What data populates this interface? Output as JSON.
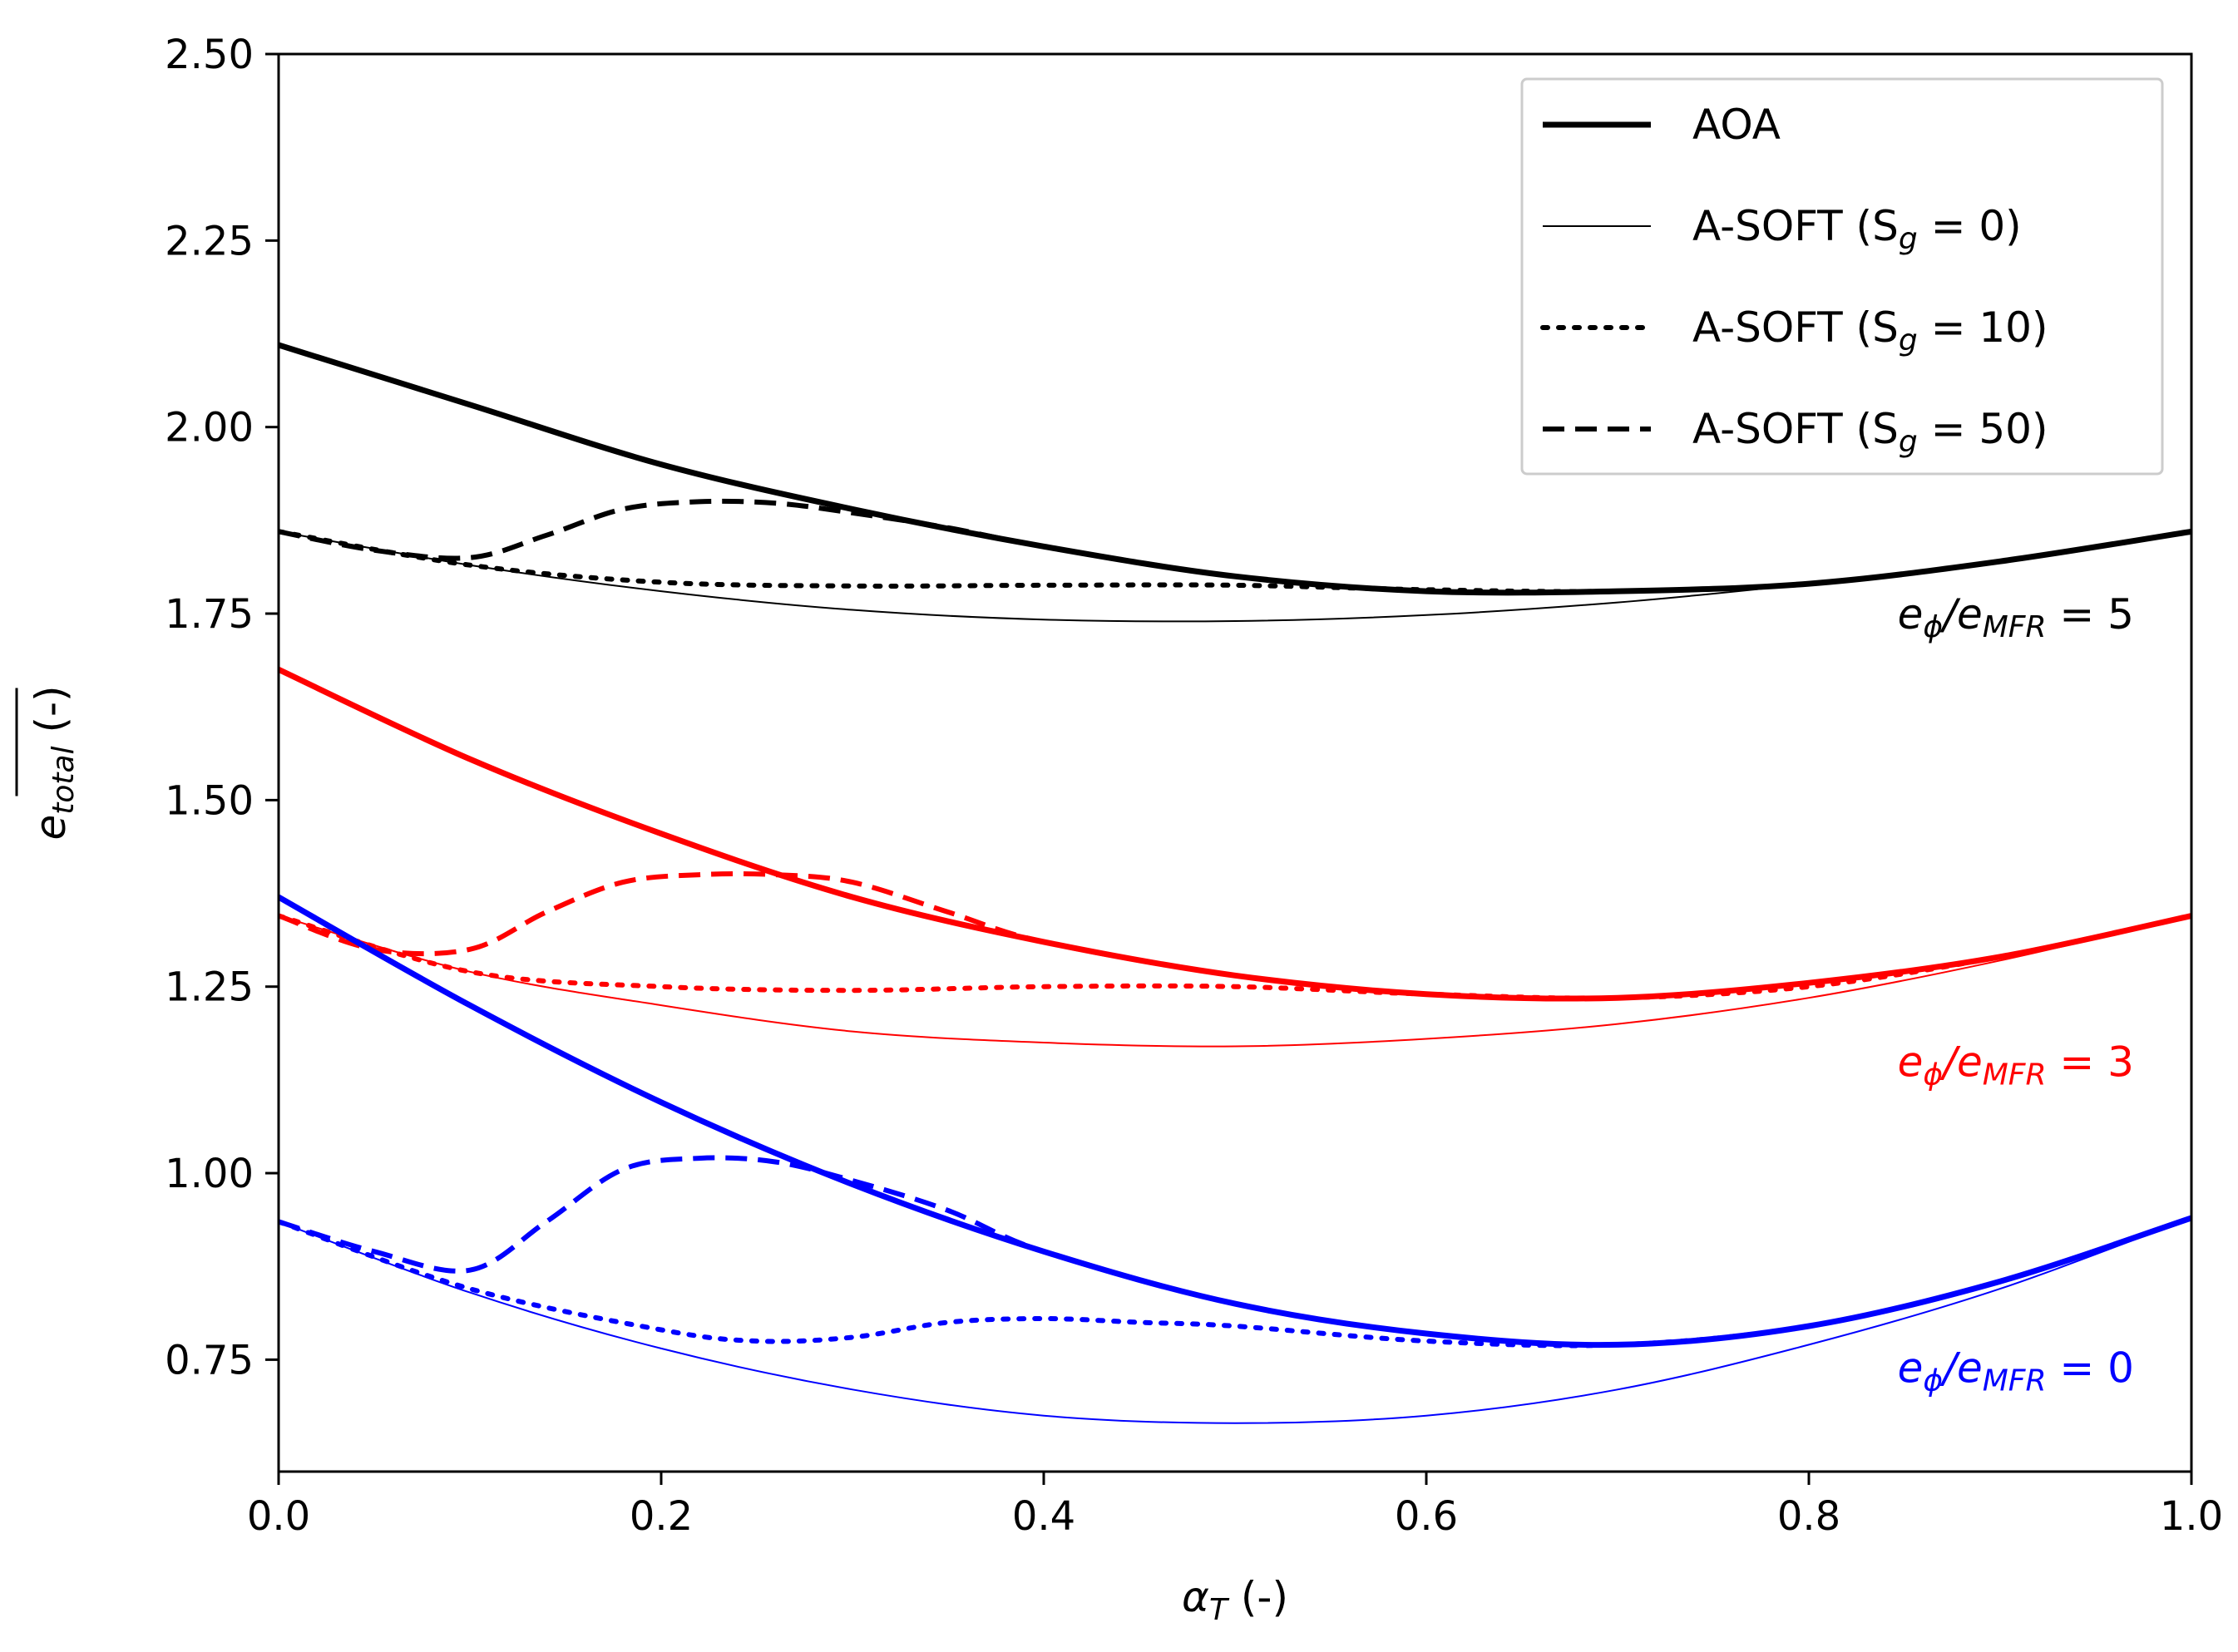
{
  "chart_data": {
    "type": "line",
    "title": "",
    "xlabel_main": "α",
    "xlabel_sub": "T",
    "xlabel_suffix": " (-)",
    "ylabel_main": "e",
    "ylabel_sub": "total",
    "ylabel_suffix": " (-)",
    "xlim": [
      0.0,
      1.0
    ],
    "ylim": [
      0.6,
      2.5
    ],
    "xticks": [
      0.0,
      0.2,
      0.4,
      0.6,
      0.8,
      1.0
    ],
    "xtick_labels": [
      "0.0",
      "0.2",
      "0.4",
      "0.6",
      "0.8",
      "1.0"
    ],
    "yticks": [
      0.75,
      1.0,
      1.25,
      1.5,
      1.75,
      2.0,
      2.25,
      2.5
    ],
    "ytick_labels": [
      "0.75",
      "1.00",
      "1.25",
      "1.50",
      "1.75",
      "2.00",
      "2.25",
      "2.50"
    ],
    "grid": false,
    "legend_position": "top-right",
    "legend": [
      {
        "style": "AOA",
        "main": "AOA",
        "sub": "",
        "suffix": ""
      },
      {
        "style": "sg0",
        "main": "A-SOFT (S",
        "sub": "g",
        "suffix": " = 0)"
      },
      {
        "style": "sg10",
        "main": "A-SOFT (S",
        "sub": "g",
        "suffix": " = 10)"
      },
      {
        "style": "sg50",
        "main": "A-SOFT (S",
        "sub": "g",
        "suffix": " = 50)"
      }
    ],
    "groups": [
      {
        "color": "#000000",
        "annotation": {
          "e1": "e",
          "s1": "ϕ",
          "slash": "/e",
          "s2": "MFR",
          "eq": " = 5"
        },
        "annotation_x": 0.97,
        "annotation_y": 1.73,
        "series": [
          {
            "name": "AOA",
            "style": "AOA",
            "x": [
              0.0,
              0.1,
              0.2,
              0.3,
              0.4,
              0.5,
              0.6,
              0.7,
              0.8,
              0.9,
              1.0
            ],
            "y": [
              2.11,
              2.03,
              1.95,
              1.89,
              1.84,
              1.8,
              1.78,
              1.78,
              1.79,
              1.82,
              1.86
            ]
          },
          {
            "name": "A-SOFT (Sg = 0)",
            "style": "sg0",
            "x": [
              0.0,
              0.1,
              0.2,
              0.3,
              0.4,
              0.5,
              0.6,
              0.7,
              0.8,
              0.9,
              1.0
            ],
            "y": [
              1.86,
              1.815,
              1.78,
              1.755,
              1.742,
              1.74,
              1.748,
              1.765,
              1.79,
              1.82,
              1.86
            ]
          },
          {
            "name": "A-SOFT (Sg = 10)",
            "style": "sg10",
            "x": [
              0.0,
              0.1,
              0.2,
              0.3,
              0.4,
              0.5,
              0.6,
              0.7,
              0.8,
              0.9,
              1.0
            ],
            "y": [
              1.86,
              1.815,
              1.792,
              1.787,
              1.788,
              1.788,
              1.782,
              1.78,
              1.79,
              1.82,
              1.86
            ]
          },
          {
            "name": "A-SOFT (Sg = 50)",
            "style": "sg50",
            "x": [
              0.0,
              0.05,
              0.1,
              0.14,
              0.18,
              0.22,
              0.26,
              0.3,
              0.35,
              0.4,
              0.5,
              0.6,
              0.7,
              0.8,
              0.9,
              1.0
            ],
            "y": [
              1.86,
              1.835,
              1.825,
              1.855,
              1.89,
              1.9,
              1.898,
              1.885,
              1.865,
              1.84,
              1.8,
              1.78,
              1.78,
              1.79,
              1.82,
              1.86
            ]
          }
        ]
      },
      {
        "color": "#ff0000",
        "annotation": {
          "e1": "e",
          "s1": "ϕ",
          "slash": "/e",
          "s2": "MFR",
          "eq": " = 3"
        },
        "annotation_x": 0.97,
        "annotation_y": 1.13,
        "series": [
          {
            "name": "AOA",
            "style": "AOA",
            "x": [
              0.0,
              0.1,
              0.2,
              0.3,
              0.4,
              0.5,
              0.6,
              0.7,
              0.8,
              0.9,
              1.0
            ],
            "y": [
              1.675,
              1.555,
              1.455,
              1.37,
              1.31,
              1.265,
              1.24,
              1.235,
              1.255,
              1.29,
              1.345
            ]
          },
          {
            "name": "A-SOFT (Sg = 0)",
            "style": "sg0",
            "x": [
              0.0,
              0.1,
              0.2,
              0.3,
              0.4,
              0.5,
              0.6,
              0.7,
              0.8,
              0.9,
              1.0
            ],
            "y": [
              1.345,
              1.27,
              1.225,
              1.19,
              1.175,
              1.17,
              1.18,
              1.2,
              1.235,
              1.285,
              1.345
            ]
          },
          {
            "name": "A-SOFT (Sg = 10)",
            "style": "sg10",
            "x": [
              0.0,
              0.1,
              0.2,
              0.3,
              0.4,
              0.5,
              0.6,
              0.7,
              0.8,
              0.9,
              1.0
            ],
            "y": [
              1.345,
              1.27,
              1.25,
              1.245,
              1.25,
              1.25,
              1.24,
              1.235,
              1.25,
              1.29,
              1.345
            ]
          },
          {
            "name": "A-SOFT (Sg = 50)",
            "style": "sg50",
            "x": [
              0.0,
              0.05,
              0.1,
              0.14,
              0.18,
              0.22,
              0.26,
              0.3,
              0.35,
              0.4,
              0.5,
              0.6,
              0.7,
              0.8,
              0.9,
              1.0
            ],
            "y": [
              1.345,
              1.3,
              1.3,
              1.35,
              1.39,
              1.4,
              1.4,
              1.39,
              1.35,
              1.31,
              1.265,
              1.24,
              1.235,
              1.255,
              1.29,
              1.345
            ]
          }
        ]
      },
      {
        "color": "#0000ff",
        "annotation": {
          "e1": "e",
          "s1": "ϕ",
          "slash": "/e",
          "s2": "MFR",
          "eq": " = 0"
        },
        "annotation_x": 0.97,
        "annotation_y": 0.72,
        "series": [
          {
            "name": "AOA",
            "style": "AOA",
            "x": [
              0.0,
              0.1,
              0.2,
              0.3,
              0.4,
              0.5,
              0.6,
              0.7,
              0.8,
              0.9,
              1.0
            ],
            "y": [
              1.37,
              1.225,
              1.095,
              0.985,
              0.895,
              0.825,
              0.785,
              0.77,
              0.795,
              0.855,
              0.94
            ]
          },
          {
            "name": "A-SOFT (Sg = 0)",
            "style": "sg0",
            "x": [
              0.0,
              0.1,
              0.2,
              0.3,
              0.4,
              0.5,
              0.6,
              0.7,
              0.8,
              0.9,
              1.0
            ],
            "y": [
              0.935,
              0.84,
              0.765,
              0.71,
              0.675,
              0.665,
              0.675,
              0.71,
              0.77,
              0.845,
              0.94
            ]
          },
          {
            "name": "A-SOFT (Sg = 10)",
            "style": "sg10",
            "x": [
              0.0,
              0.1,
              0.2,
              0.25,
              0.3,
              0.35,
              0.4,
              0.45,
              0.5,
              0.6,
              0.7,
              0.8,
              0.9,
              1.0
            ],
            "y": [
              0.935,
              0.845,
              0.79,
              0.775,
              0.78,
              0.8,
              0.805,
              0.8,
              0.795,
              0.775,
              0.77,
              0.795,
              0.855,
              0.94
            ]
          },
          {
            "name": "A-SOFT (Sg = 50)",
            "style": "sg50",
            "x": [
              0.0,
              0.05,
              0.1,
              0.14,
              0.18,
              0.22,
              0.26,
              0.3,
              0.35,
              0.4,
              0.5,
              0.6,
              0.7,
              0.8,
              0.9,
              1.0
            ],
            "y": [
              0.935,
              0.895,
              0.87,
              0.935,
              1.005,
              1.02,
              1.015,
              0.99,
              0.95,
              0.895,
              0.825,
              0.785,
              0.77,
              0.795,
              0.855,
              0.94
            ]
          }
        ]
      }
    ]
  }
}
